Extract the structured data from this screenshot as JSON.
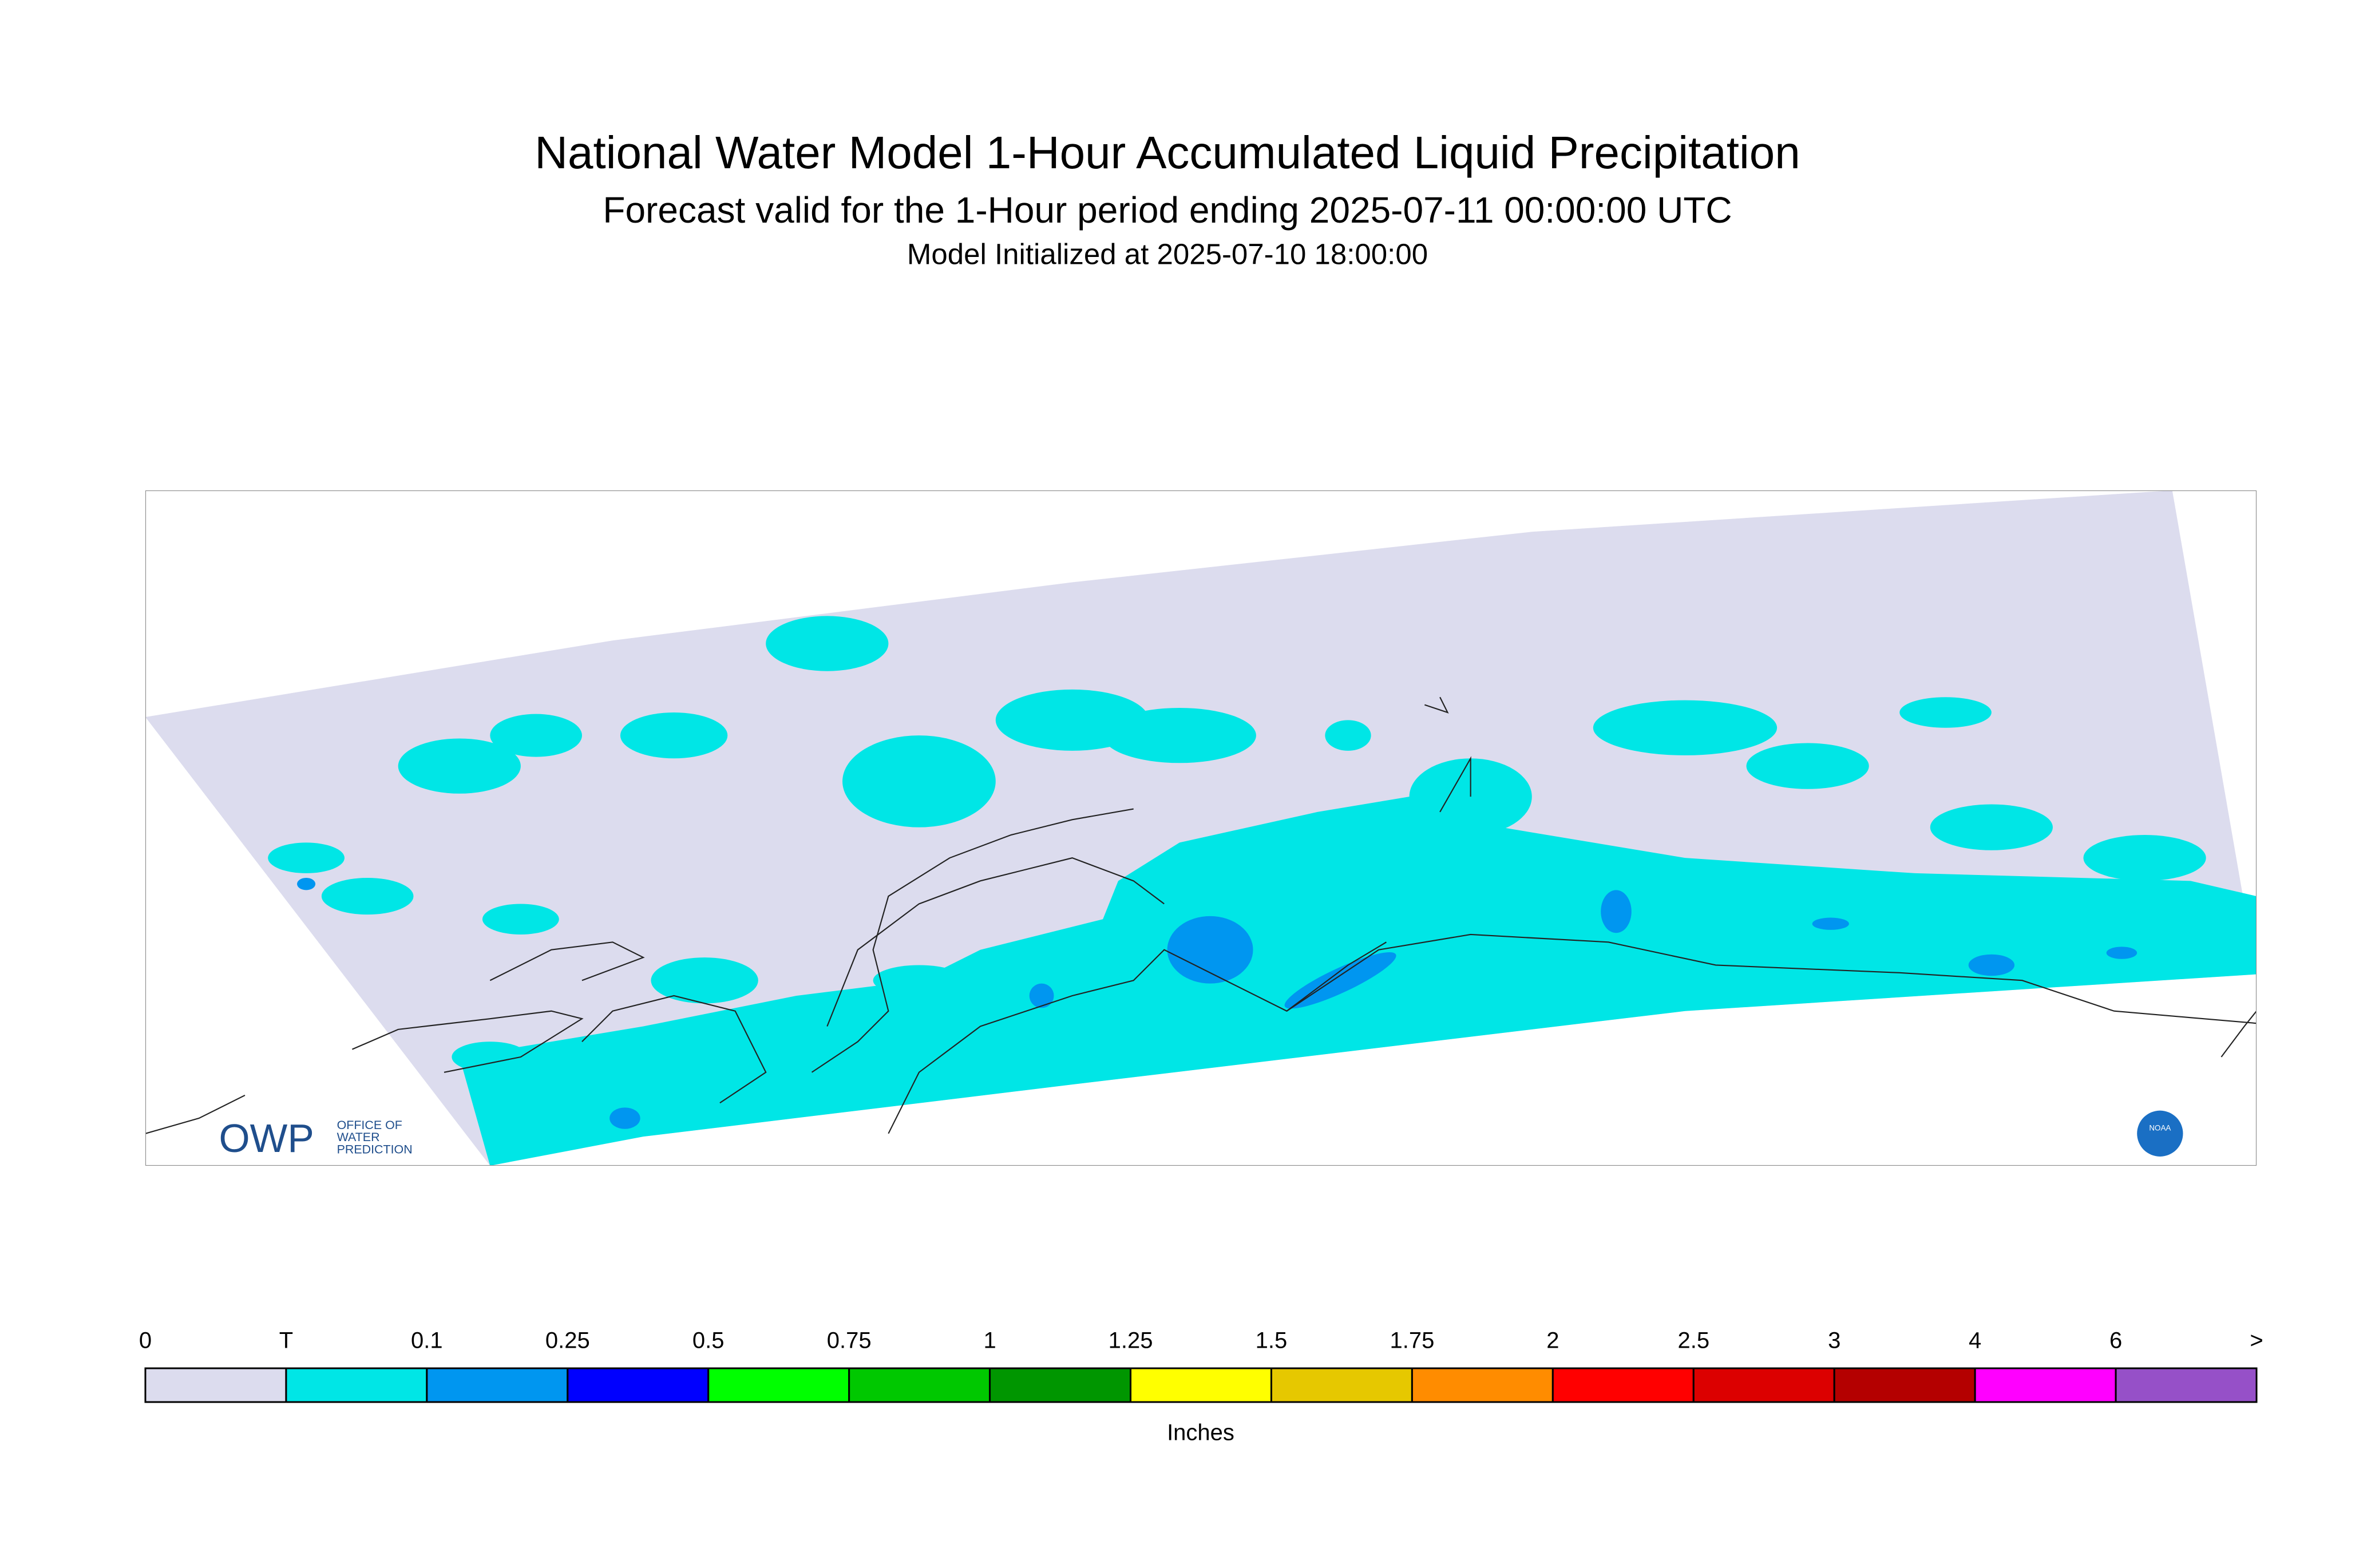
{
  "header": {
    "title": "National Water Model 1-Hour Accumulated Liquid Precipitation",
    "subtitle": "Forecast valid for the 1-Hour period ending 2025-07-11 00:00:00 UTC",
    "initialized": "Model Initialized at 2025-07-10 18:00:00"
  },
  "map": {
    "logo": {
      "mark": "OWP",
      "text": [
        "OFFICE OF",
        "WATER",
        "PREDICTION"
      ]
    },
    "agency": "NOAA"
  },
  "legend": {
    "labels": [
      "0",
      "T",
      "0.1",
      "0.25",
      "0.5",
      "0.75",
      "1",
      "1.25",
      "1.5",
      "1.75",
      "2",
      "2.5",
      "3",
      "4",
      "6",
      ">"
    ],
    "colors": [
      "#dcdcee",
      "#00e6e6",
      "#0096f0",
      "#0000ff",
      "#00ff00",
      "#00c800",
      "#009600",
      "#ffff00",
      "#e6c800",
      "#ff8c00",
      "#ff0000",
      "#dc0000",
      "#b40000",
      "#ff00ff",
      "#9650c8"
    ],
    "unit": "Inches"
  }
}
